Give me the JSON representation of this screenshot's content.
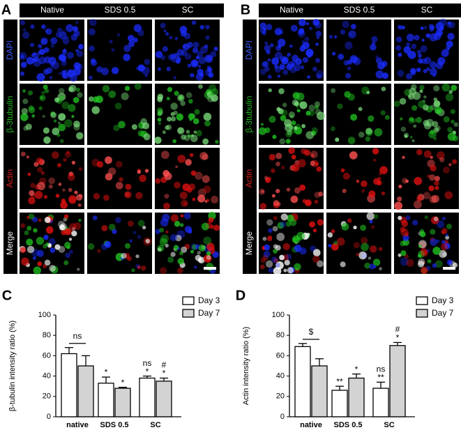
{
  "panels": [
    {
      "letter": "A",
      "columns": [
        "Native",
        "SDS 0.5",
        "SC"
      ],
      "rows": [
        "DAPI",
        "β-3tubulin",
        "Actin",
        "Merge"
      ]
    },
    {
      "letter": "B",
      "columns": [
        "Native",
        "SDS 0.5",
        "SC"
      ],
      "rows": [
        "DAPI",
        "β-3tubulin",
        "Actin",
        "Merge"
      ]
    }
  ],
  "chart_data": [
    {
      "type": "bar",
      "letter": "C",
      "ylabel": "β-tubulin intensity ratio (%)",
      "categories": [
        "native",
        "SDS 0.5",
        "SC"
      ],
      "ylim": [
        0,
        100
      ],
      "yticks": [
        0,
        20,
        40,
        60,
        80,
        100
      ],
      "bracket_label": "ns",
      "series": [
        {
          "name": "Day 3",
          "color": "#ffffff",
          "values": [
            62,
            33,
            38
          ],
          "errors": [
            6,
            6,
            2
          ],
          "annotations": [
            [],
            [
              "*"
            ],
            [
              "ns",
              "*"
            ]
          ]
        },
        {
          "name": "Day 7",
          "color": "#d3d3d3",
          "values": [
            50,
            28,
            35
          ],
          "errors": [
            10,
            1,
            3
          ],
          "annotations": [
            [],
            [
              "*"
            ],
            [
              "#",
              "*"
            ]
          ]
        }
      ]
    },
    {
      "type": "bar",
      "letter": "D",
      "ylabel": "Actin intensity ratio (%)",
      "categories": [
        "native",
        "SDS 0.5",
        "SC"
      ],
      "ylim": [
        0,
        100
      ],
      "yticks": [
        0,
        20,
        40,
        60,
        80,
        100
      ],
      "bracket_label": "$",
      "series": [
        {
          "name": "Day 3",
          "color": "#ffffff",
          "values": [
            69,
            26,
            28
          ],
          "errors": [
            3,
            4,
            6
          ],
          "annotations": [
            [],
            [
              "**"
            ],
            [
              "ns",
              "**"
            ]
          ]
        },
        {
          "name": "Day 7",
          "color": "#d3d3d3",
          "values": [
            50,
            38,
            70
          ],
          "errors": [
            7,
            4,
            3
          ],
          "annotations": [
            [],
            [
              "*"
            ],
            [
              "#",
              "*"
            ]
          ]
        }
      ]
    }
  ]
}
